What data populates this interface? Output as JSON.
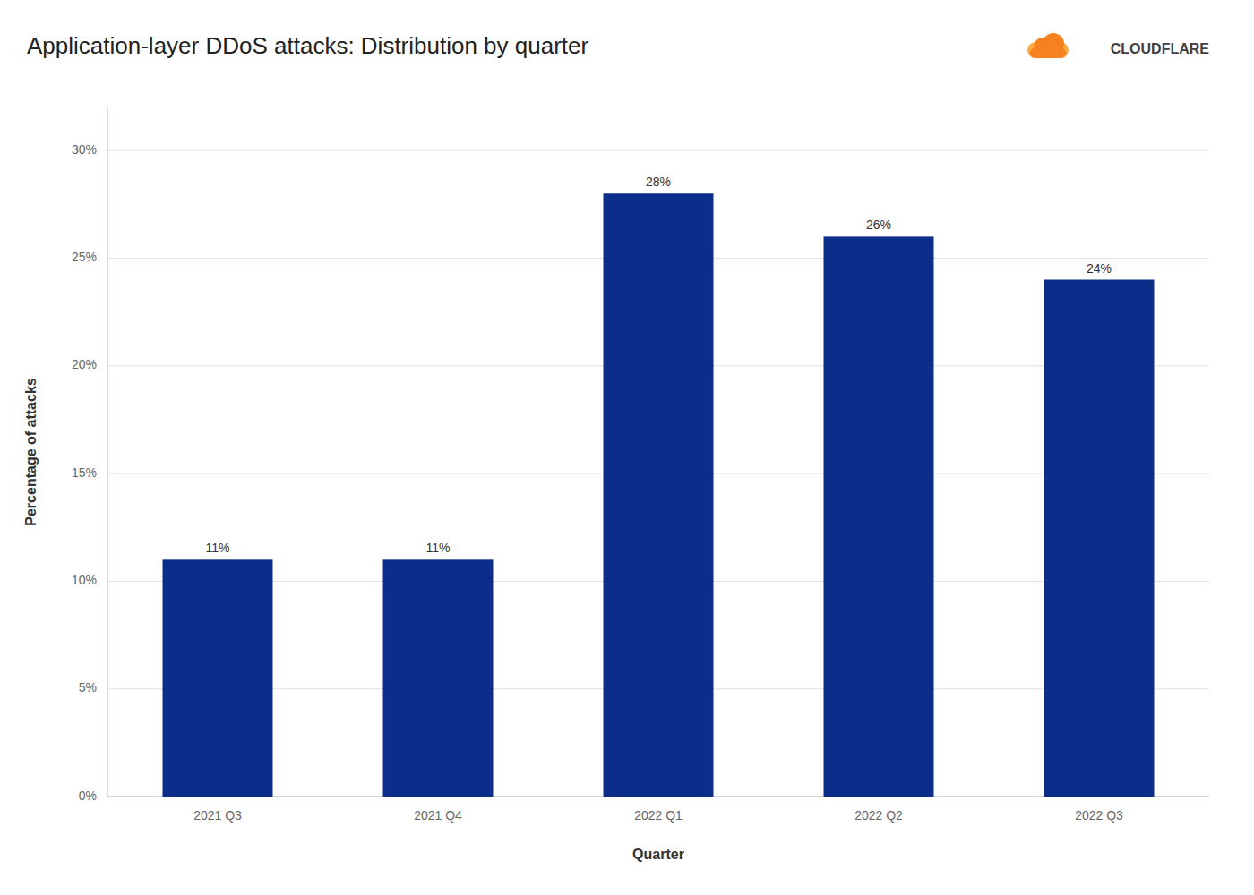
{
  "chart_data": {
    "type": "bar",
    "title": "Application-layer DDoS attacks: Distribution by quarter",
    "xlabel": "Quarter",
    "ylabel": "Percentage of attacks",
    "categories": [
      "2021 Q3",
      "2021 Q4",
      "2022 Q1",
      "2022 Q2",
      "2022 Q3"
    ],
    "values": [
      11,
      11,
      28,
      26,
      24
    ],
    "value_labels": [
      "11%",
      "11%",
      "28%",
      "26%",
      "24%"
    ],
    "data_labels": true,
    "color": "#0d2d8a",
    "ylim": [
      0,
      32
    ],
    "yticks": [
      {
        "value": 0,
        "label": "0%"
      },
      {
        "value": 5,
        "label": "5%"
      },
      {
        "value": 10,
        "label": "10%"
      },
      {
        "value": 15,
        "label": "15%"
      },
      {
        "value": 20,
        "label": "20%"
      },
      {
        "value": 25,
        "label": "25%"
      },
      {
        "value": 30,
        "label": "30%"
      }
    ],
    "grid": true,
    "annotations": [
      "CLOUDFLARE"
    ]
  }
}
